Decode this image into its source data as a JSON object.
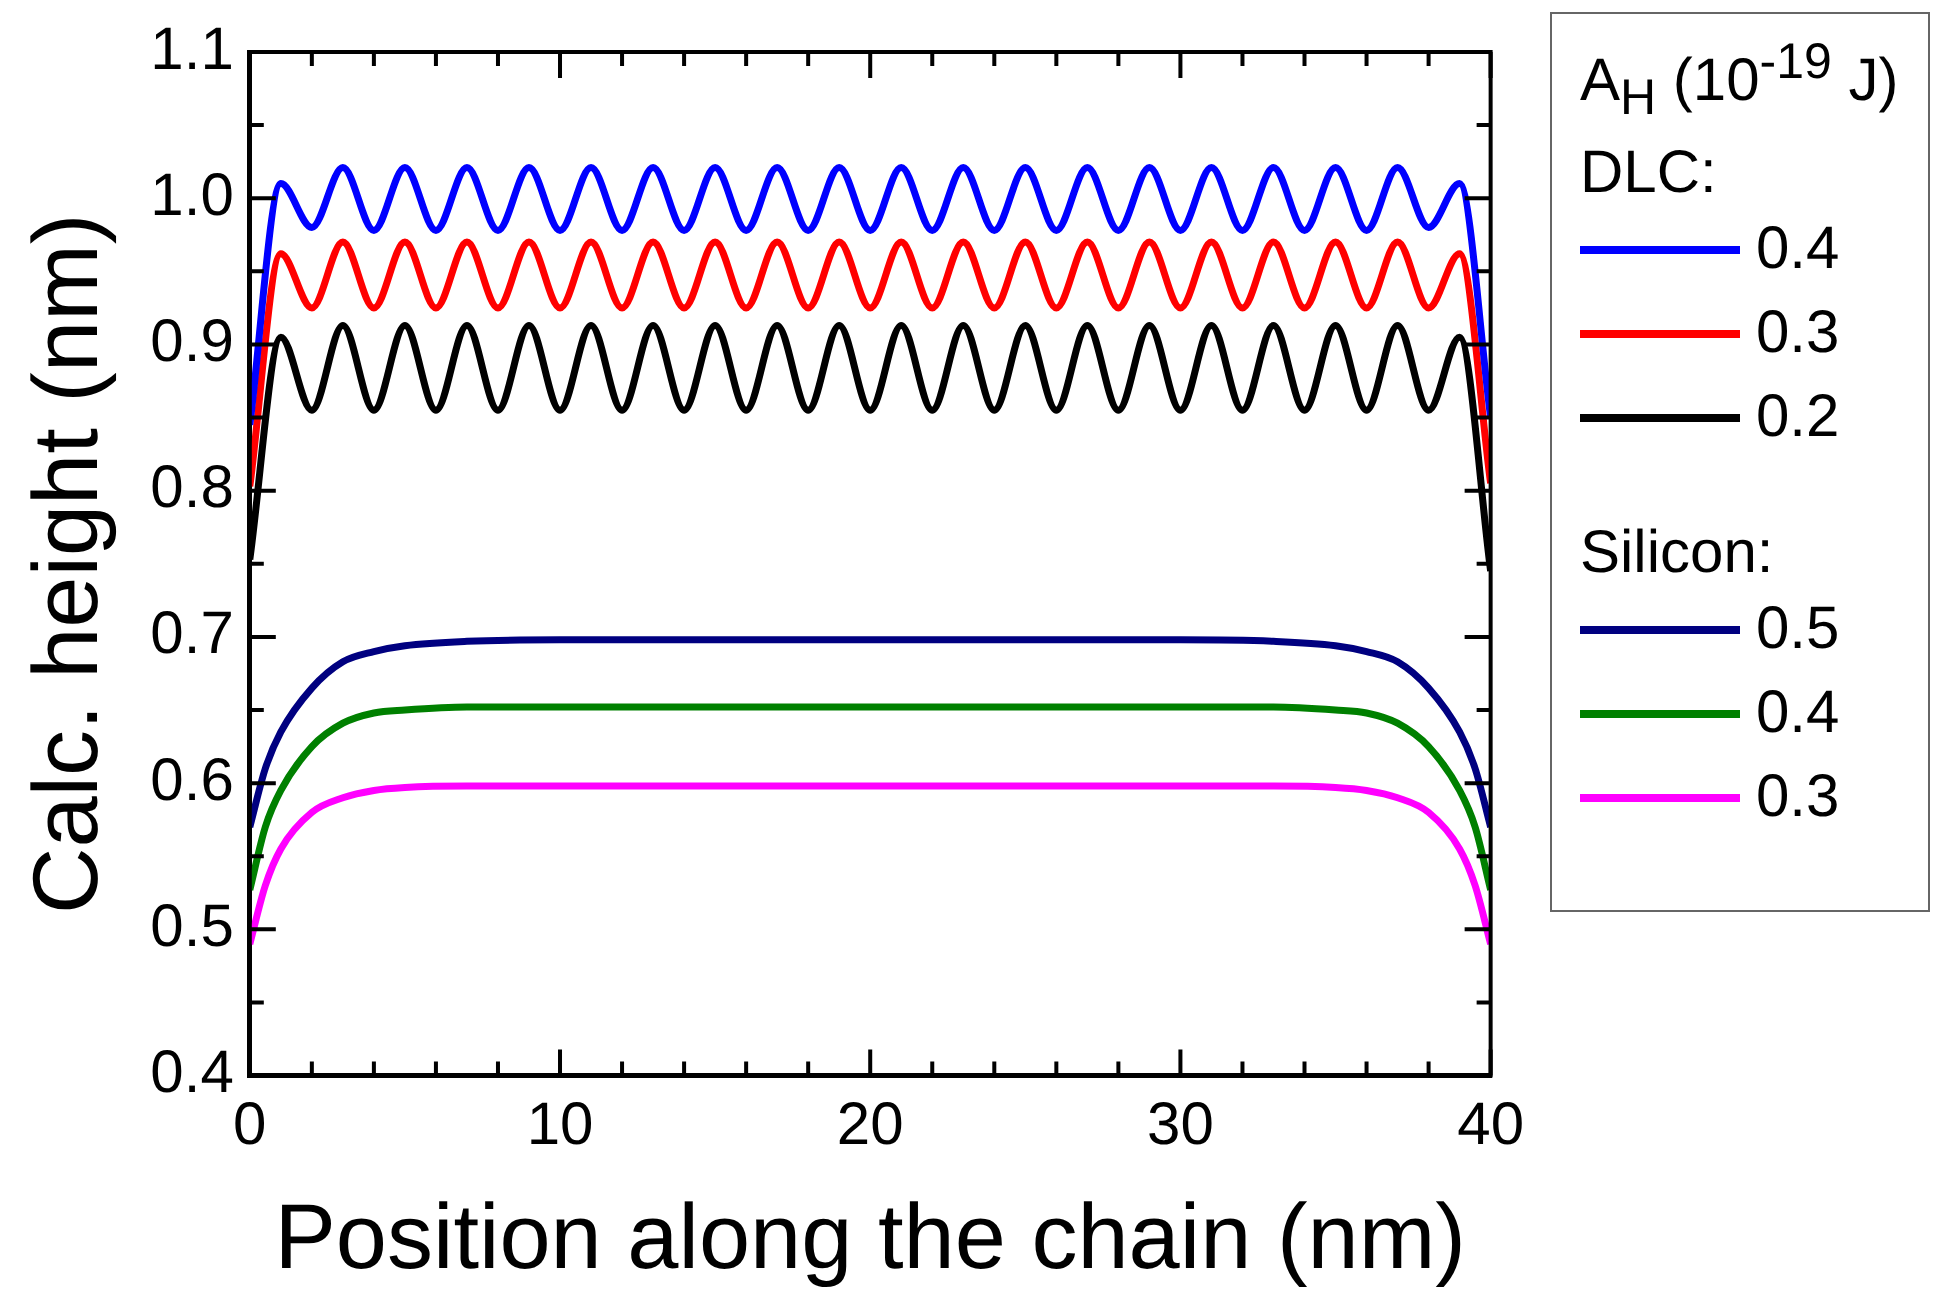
{
  "chart_data": {
    "type": "line",
    "xlabel": "Position along the chain (nm)",
    "ylabel": "Calc. height (nm)",
    "legend_title": "A$_{H}$ (10$^{-19}$ J)",
    "annotations": [
      "DLC:",
      "Silicon:"
    ],
    "xlim": [
      0,
      40
    ],
    "xticks": [
      0,
      {
        "value": 2,
        "label": null
      },
      {
        "value": 4,
        "label": null
      },
      {
        "value": 6,
        "label": null
      },
      {
        "value": 8,
        "label": null
      },
      10,
      {
        "value": 12,
        "label": null
      },
      {
        "value": 14,
        "label": null
      },
      {
        "value": 16,
        "label": null
      },
      {
        "value": 18,
        "label": null
      },
      20,
      {
        "value": 22,
        "label": null
      },
      {
        "value": 24,
        "label": null
      },
      {
        "value": 26,
        "label": null
      },
      {
        "value": 28,
        "label": null
      },
      30,
      {
        "value": 32,
        "label": null
      },
      {
        "value": 34,
        "label": null
      },
      {
        "value": 36,
        "label": null
      },
      {
        "value": 38,
        "label": null
      },
      40
    ],
    "ylim": [
      0.4,
      1.1
    ],
    "yticks": [
      0.4,
      {
        "value": 0.45,
        "label": null
      },
      0.5,
      {
        "value": 0.55,
        "label": null
      },
      0.6,
      {
        "value": 0.65,
        "label": null
      },
      0.7,
      {
        "value": 0.75,
        "label": null
      },
      0.8,
      {
        "value": 0.85,
        "label": null
      },
      0.9,
      {
        "value": 0.95,
        "label": null
      },
      {
        "value": 1,
        "label": "1.0"
      },
      {
        "value": 1.05,
        "label": null
      },
      1.1
    ],
    "grid": false,
    "legend": "right",
    "marker": "none",
    "line_style": "solid",
    "series": [
      {
        "name": "0.4",
        "color": "#0000ff",
        "x": [
          0,
          1,
          2,
          3,
          4,
          5,
          6,
          7,
          8,
          9,
          10,
          11,
          12,
          13,
          14,
          15,
          16,
          17,
          18,
          19,
          20,
          21,
          22,
          23,
          24,
          25,
          26,
          27,
          28,
          29,
          30,
          31,
          32,
          33,
          34,
          35,
          36,
          37,
          38,
          39,
          40
        ],
        "values": [
          0.845,
          1.01,
          0.98,
          1.021,
          0.978,
          1.021,
          0.978,
          1.021,
          0.978,
          1.021,
          0.978,
          1.021,
          0.978,
          1.021,
          0.978,
          1.021,
          0.978,
          1.021,
          0.978,
          1.021,
          0.978,
          1.021,
          0.978,
          1.021,
          0.978,
          1.021,
          0.978,
          1.021,
          0.978,
          1.021,
          0.978,
          1.021,
          0.978,
          1.021,
          0.978,
          1.021,
          0.978,
          1.021,
          0.98,
          1.01,
          0.85
        ]
      },
      {
        "name": "0.3",
        "color": "#ff0000",
        "x": [
          0,
          1,
          2,
          3,
          4,
          5,
          6,
          7,
          8,
          9,
          10,
          11,
          12,
          13,
          14,
          15,
          16,
          17,
          18,
          19,
          20,
          21,
          22,
          23,
          24,
          25,
          26,
          27,
          28,
          29,
          30,
          31,
          32,
          33,
          34,
          35,
          36,
          37,
          38,
          39,
          40
        ],
        "values": [
          0.803,
          0.962,
          0.925,
          0.97,
          0.925,
          0.97,
          0.925,
          0.97,
          0.925,
          0.97,
          0.925,
          0.97,
          0.925,
          0.97,
          0.925,
          0.97,
          0.925,
          0.97,
          0.925,
          0.97,
          0.925,
          0.97,
          0.925,
          0.97,
          0.925,
          0.97,
          0.925,
          0.97,
          0.925,
          0.97,
          0.925,
          0.97,
          0.925,
          0.97,
          0.925,
          0.97,
          0.925,
          0.97,
          0.925,
          0.962,
          0.805
        ]
      },
      {
        "name": "0.2",
        "color": "#000000",
        "x": [
          0,
          1,
          2,
          3,
          4,
          5,
          6,
          7,
          8,
          9,
          10,
          11,
          12,
          13,
          14,
          15,
          16,
          17,
          18,
          19,
          20,
          21,
          22,
          23,
          24,
          25,
          26,
          27,
          28,
          29,
          30,
          31,
          32,
          33,
          34,
          35,
          36,
          37,
          38,
          39,
          40
        ],
        "values": [
          0.753,
          0.905,
          0.855,
          0.913,
          0.855,
          0.913,
          0.855,
          0.913,
          0.855,
          0.913,
          0.855,
          0.913,
          0.855,
          0.913,
          0.855,
          0.913,
          0.855,
          0.913,
          0.855,
          0.913,
          0.855,
          0.913,
          0.855,
          0.913,
          0.855,
          0.913,
          0.855,
          0.913,
          0.855,
          0.913,
          0.855,
          0.913,
          0.855,
          0.913,
          0.855,
          0.913,
          0.855,
          0.913,
          0.855,
          0.905,
          0.745
        ]
      },
      {
        "name": "0.5",
        "color": "#000080",
        "x": [
          0,
          0.5,
          1,
          2,
          3,
          4,
          5,
          7,
          10,
          20,
          30,
          33,
          35,
          36,
          37,
          38,
          39,
          39.5,
          40
        ],
        "values": [
          0.57,
          0.61,
          0.635,
          0.665,
          0.683,
          0.69,
          0.694,
          0.697,
          0.698,
          0.698,
          0.698,
          0.697,
          0.694,
          0.69,
          0.683,
          0.665,
          0.635,
          0.61,
          0.57
        ]
      },
      {
        "name": "0.4",
        "color": "#008000",
        "x": [
          0,
          0.5,
          1,
          2,
          3,
          4,
          5,
          7,
          10,
          20,
          30,
          33,
          35,
          36,
          37,
          38,
          39,
          39.5,
          40
        ],
        "values": [
          0.527,
          0.57,
          0.595,
          0.625,
          0.641,
          0.648,
          0.65,
          0.652,
          0.652,
          0.652,
          0.652,
          0.652,
          0.65,
          0.648,
          0.641,
          0.625,
          0.595,
          0.57,
          0.527
        ]
      },
      {
        "name": "0.3",
        "color": "#ff00ff",
        "x": [
          0,
          0.5,
          1,
          2,
          3,
          4,
          5,
          7,
          10,
          20,
          30,
          33,
          35,
          36,
          37,
          38,
          39,
          39.5,
          40
        ],
        "values": [
          0.49,
          0.53,
          0.555,
          0.58,
          0.59,
          0.595,
          0.597,
          0.598,
          0.598,
          0.598,
          0.598,
          0.598,
          0.597,
          0.595,
          0.59,
          0.58,
          0.555,
          0.53,
          0.49
        ]
      }
    ]
  }
}
